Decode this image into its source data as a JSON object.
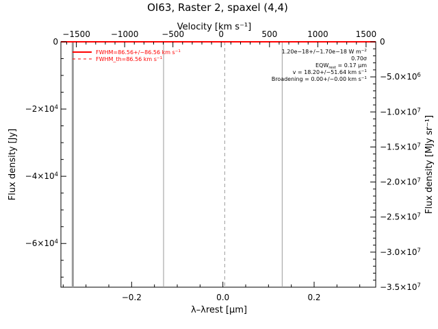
{
  "chart_data": {
    "type": "line",
    "title": "OI63, Raster 2, spaxel (4,4)",
    "xlabel": "λ–λrest [μm]",
    "x2label": "Velocity [km s⁻¹]",
    "ylabel": "Flux density [Jy]",
    "y2label": "Flux density [MJy sr⁻¹]",
    "xlim": [
      -0.355,
      0.335
    ],
    "ylim": [
      -73000,
      0
    ],
    "x2lim": [
      -1660,
      1600
    ],
    "y2lim": [
      -35000000.0,
      0
    ],
    "x_ticks": [
      -0.2,
      0.0,
      0.2
    ],
    "x_tick_labels": [
      "−0.2",
      "0.0",
      "0.2"
    ],
    "y_ticks": [
      0,
      -20000,
      -40000,
      -60000
    ],
    "y_tick_labels": [
      {
        "lead": "0",
        "pow": ""
      },
      {
        "lead": "−2×10",
        "pow": "4"
      },
      {
        "lead": "−4×10",
        "pow": "4"
      },
      {
        "lead": "−6×10",
        "pow": "4"
      }
    ],
    "x2_ticks": [
      -1500,
      -1000,
      -500,
      0,
      500,
      1000,
      1500
    ],
    "x2_tick_labels": [
      "−1500",
      "−1000",
      "−500",
      "0",
      "500",
      "1000",
      "1500"
    ],
    "y2_ticks": [
      0,
      -5000000.0,
      -10000000.0,
      -15000000.0,
      -20000000.0,
      -25000000.0,
      -30000000.0,
      -35000000.0
    ],
    "y2_tick_labels": [
      {
        "lead": "0",
        "pow": ""
      },
      {
        "lead": "−5.0×10",
        "pow": "6"
      },
      {
        "lead": "−1.0×10",
        "pow": "7"
      },
      {
        "lead": "−1.5×10",
        "pow": "7"
      },
      {
        "lead": "−2.0×10",
        "pow": "7"
      },
      {
        "lead": "−2.5×10",
        "pow": "7"
      },
      {
        "lead": "−3.0×10",
        "pow": "7"
      },
      {
        "lead": "−3.5×10",
        "pow": "7"
      }
    ],
    "series": [
      {
        "x": [
          -0.355,
          0.335
        ],
        "y": [
          0,
          0
        ],
        "color": "#ff0000"
      }
    ],
    "vlines": [
      {
        "x": -0.329,
        "color": "#999999",
        "width": 3
      },
      {
        "x": -0.13,
        "color": "#999999",
        "width": 1
      },
      {
        "x": 0.004,
        "color": "#999999",
        "width": 1,
        "dash": true
      },
      {
        "x": 0.13,
        "color": "#999999",
        "width": 1
      }
    ],
    "legend": {
      "placement": "top-left",
      "entries": [
        {
          "label": "FWHM=86.56+/−86.56 km s",
          "sup": "−1",
          "style": "solid",
          "color": "#ff0000"
        },
        {
          "label": "FWHM_th=86.56 km s",
          "sup": "−1",
          "style": "dashed",
          "color": "#ff0000"
        }
      ]
    },
    "annotations": [
      {
        "parts": [
          [
            "1.20e−18+/−1.70e−18 W m",
            ""
          ],
          [
            "−2",
            "sup"
          ]
        ]
      },
      {
        "parts": [
          [
            "0.70σ",
            ""
          ]
        ]
      },
      {
        "parts": [
          [
            "EQW",
            ""
          ],
          [
            "rest",
            "sub"
          ],
          [
            " = 0.17 μm",
            ""
          ]
        ]
      },
      {
        "parts": [
          [
            "v = 18.20+/−51.64 km s",
            ""
          ],
          [
            "−1",
            "sup"
          ]
        ]
      },
      {
        "parts": [
          [
            "Broadening = 0.00+/−0.00 km s",
            ""
          ],
          [
            "−1",
            "sup"
          ]
        ]
      }
    ],
    "colors": {
      "axes": "#000000",
      "data": "#ff0000",
      "guides": "#999999"
    }
  }
}
